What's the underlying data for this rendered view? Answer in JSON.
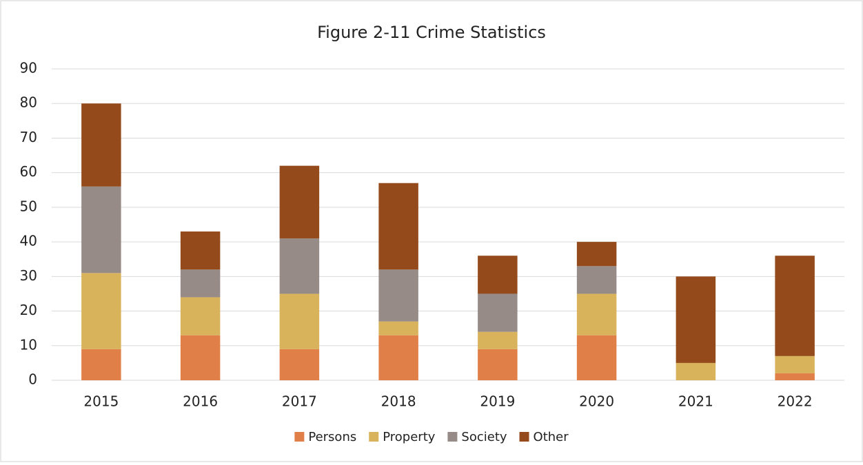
{
  "chart_data": {
    "type": "stacked_bar",
    "title": "Figure 2-11 Crime Statistics",
    "categories": [
      "2015",
      "2016",
      "2017",
      "2018",
      "2019",
      "2020",
      "2021",
      "2022"
    ],
    "series": [
      {
        "name": "Persons",
        "color": "#e07f48",
        "values": [
          9,
          13,
          9,
          13,
          9,
          13,
          0,
          2
        ]
      },
      {
        "name": "Property",
        "color": "#d9b25c",
        "values": [
          22,
          11,
          16,
          4,
          5,
          12,
          5,
          5
        ]
      },
      {
        "name": "Society",
        "color": "#968b87",
        "values": [
          25,
          8,
          16,
          15,
          11,
          8,
          0,
          0
        ]
      },
      {
        "name": "Other",
        "color": "#944a1a",
        "values": [
          24,
          11,
          21,
          25,
          11,
          7,
          25,
          29
        ]
      }
    ],
    "ylim": [
      0,
      90
    ],
    "yticks": [
      0,
      10,
      20,
      30,
      40,
      50,
      60,
      70,
      80,
      90
    ],
    "grid": true,
    "legend": "bottom"
  }
}
